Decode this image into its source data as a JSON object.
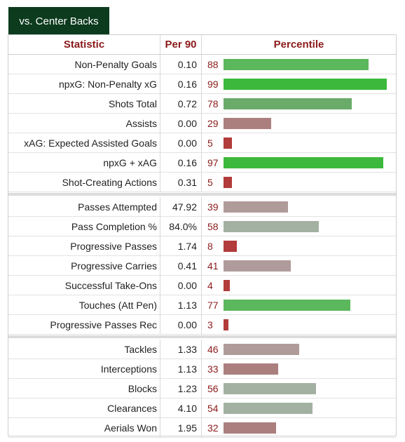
{
  "tab": {
    "label": "vs. Center Backs"
  },
  "header": {
    "statistic": "Statistic",
    "per90": "Per 90",
    "percentile": "Percentile"
  },
  "colors": {
    "high": "#3cb93c",
    "above": "#5cb85c",
    "mid_high": "#6aab6a",
    "neutral_green": "#a3b1a2",
    "neutral_red": "#b09b9b",
    "low": "#ac7f7f",
    "very_low": "#b23b3b"
  },
  "groups": [
    [
      {
        "stat": "Non-Penalty Goals",
        "per90": "0.10",
        "pct": "88",
        "pctValue": 88,
        "color": "#5cb85c"
      },
      {
        "stat": "npxG: Non-Penalty xG",
        "per90": "0.16",
        "pct": "99",
        "pctValue": 99,
        "color": "#3cb93c"
      },
      {
        "stat": "Shots Total",
        "per90": "0.72",
        "pct": "78",
        "pctValue": 78,
        "color": "#6aab6a"
      },
      {
        "stat": "Assists",
        "per90": "0.00",
        "pct": "29",
        "pctValue": 29,
        "color": "#ac7f7f"
      },
      {
        "stat": "xAG: Expected Assisted Goals",
        "per90": "0.00",
        "pct": "5",
        "pctValue": 5,
        "color": "#b23b3b"
      },
      {
        "stat": "npxG + xAG",
        "per90": "0.16",
        "pct": "97",
        "pctValue": 97,
        "color": "#3cb93c"
      },
      {
        "stat": "Shot-Creating Actions",
        "per90": "0.31",
        "pct": "5",
        "pctValue": 5,
        "color": "#b23b3b"
      }
    ],
    [
      {
        "stat": "Passes Attempted",
        "per90": "47.92",
        "pct": "39",
        "pctValue": 39,
        "color": "#b09b9b"
      },
      {
        "stat": "Pass Completion %",
        "per90": "84.0%",
        "pct": "58",
        "pctValue": 58,
        "color": "#a3b1a2"
      },
      {
        "stat": "Progressive Passes",
        "per90": "1.74",
        "pct": "8",
        "pctValue": 8,
        "color": "#b23b3b"
      },
      {
        "stat": "Progressive Carries",
        "per90": "0.41",
        "pct": "41",
        "pctValue": 41,
        "color": "#b09b9b"
      },
      {
        "stat": "Successful Take-Ons",
        "per90": "0.00",
        "pct": "4",
        "pctValue": 4,
        "color": "#b23b3b"
      },
      {
        "stat": "Touches (Att Pen)",
        "per90": "1.13",
        "pct": "77",
        "pctValue": 77,
        "color": "#5cb85c"
      },
      {
        "stat": "Progressive Passes Rec",
        "per90": "0.00",
        "pct": "3",
        "pctValue": 3,
        "color": "#b23b3b"
      }
    ],
    [
      {
        "stat": "Tackles",
        "per90": "1.33",
        "pct": "46",
        "pctValue": 46,
        "color": "#b09b9b"
      },
      {
        "stat": "Interceptions",
        "per90": "1.13",
        "pct": "33",
        "pctValue": 33,
        "color": "#ac7f7f"
      },
      {
        "stat": "Blocks",
        "per90": "1.23",
        "pct": "56",
        "pctValue": 56,
        "color": "#a3b1a2"
      },
      {
        "stat": "Clearances",
        "per90": "4.10",
        "pct": "54",
        "pctValue": 54,
        "color": "#a3b1a2"
      },
      {
        "stat": "Aerials Won",
        "per90": "1.95",
        "pct": "32",
        "pctValue": 32,
        "color": "#ac7f7f"
      }
    ]
  ]
}
